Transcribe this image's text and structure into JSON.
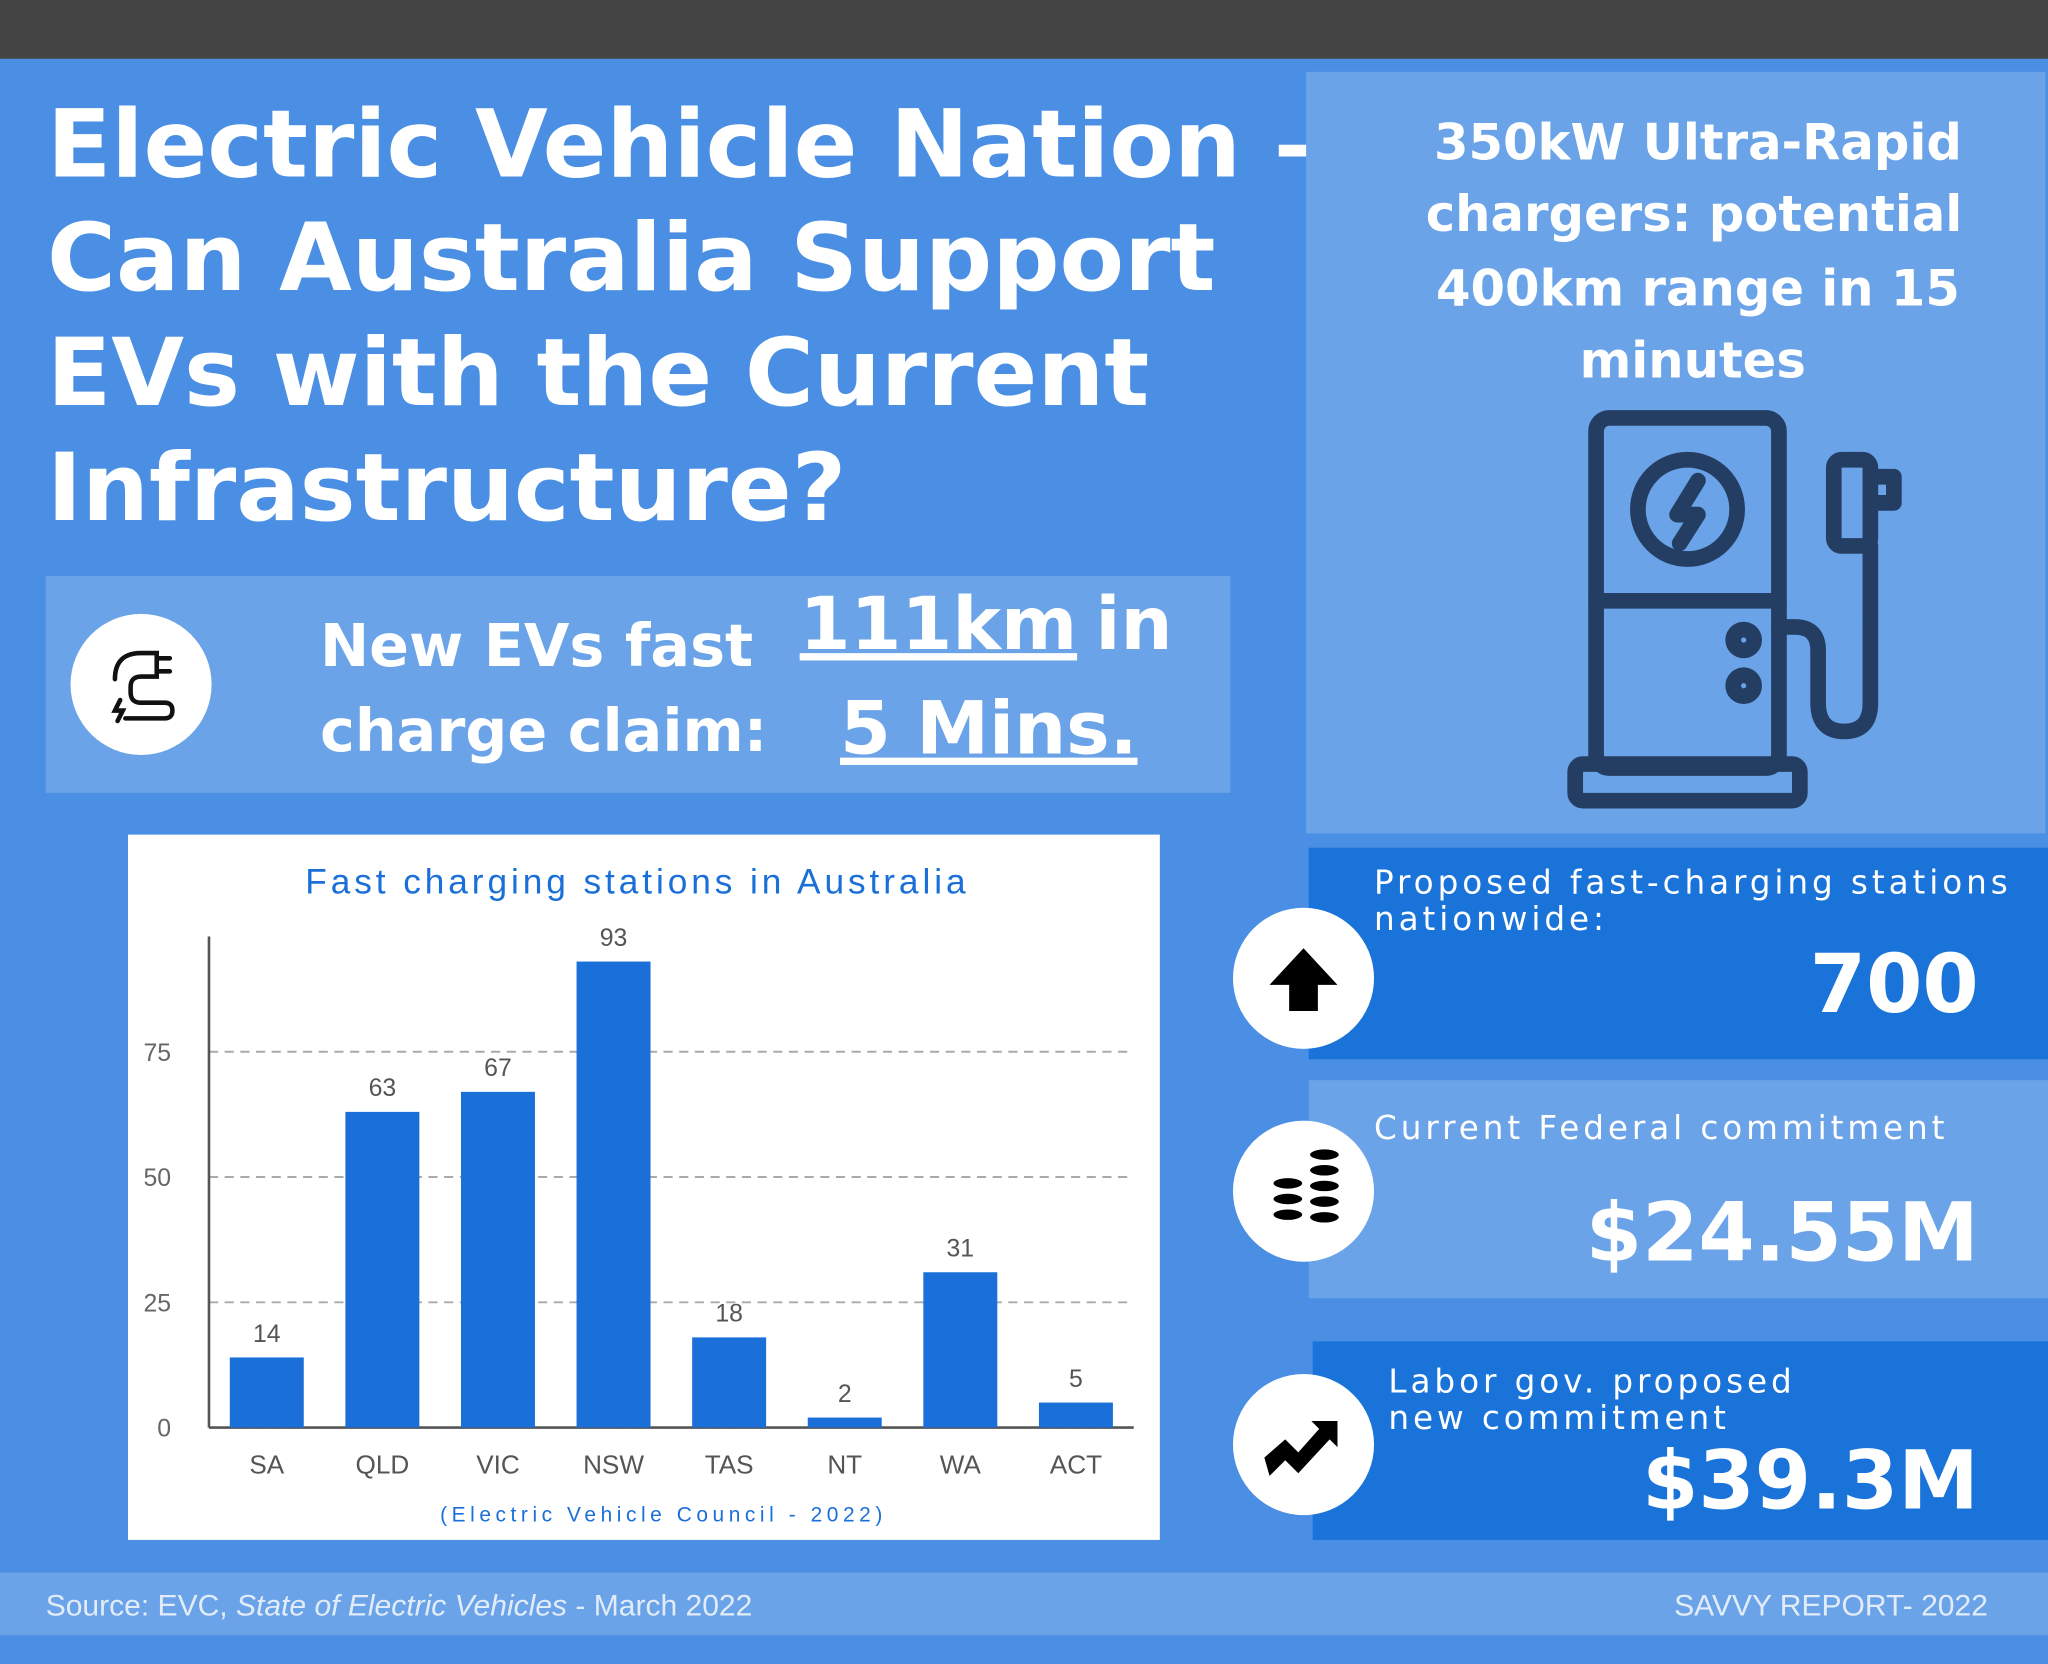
{
  "header": {
    "title_lines": [
      "Electric Vehicle Nation –",
      "Can Australia Support",
      "EVs with the Current",
      "Infrastructure?"
    ]
  },
  "claim": {
    "label_lines": [
      "New EVs fast",
      "charge claim:"
    ],
    "distance": "111km",
    "connector": "in",
    "time": "5 Mins."
  },
  "feature": {
    "lines": [
      "350kW Ultra-Rapid",
      "chargers: potential",
      "400km range in 15",
      "minutes"
    ]
  },
  "stats": [
    {
      "label_lines": [
        "Proposed fast-charging stations",
        "nationwide:"
      ],
      "value": "700"
    },
    {
      "label_lines": [
        "Current Federal commitment"
      ],
      "value": "$24.55M"
    },
    {
      "label_lines": [
        "Labor gov. proposed",
        "new commitment"
      ],
      "value": "$39.3M"
    }
  ],
  "chart_data": {
    "type": "bar",
    "title": "Fast charging stations in Australia",
    "source": "(Electric Vehicle Council - 2022)",
    "categories": [
      "SA",
      "QLD",
      "VIC",
      "NSW",
      "TAS",
      "NT",
      "WA",
      "ACT"
    ],
    "values": [
      14,
      63,
      67,
      93,
      18,
      2,
      31,
      5
    ],
    "color": "#1a6fd8",
    "ylim": [
      0,
      98
    ],
    "yticks": [
      0,
      25,
      50,
      75
    ],
    "grid": true
  },
  "footer": {
    "source_prefix": "Source: EVC,",
    "source_title": "State of Electric Vehicles",
    "source_suffix": "- March 2022",
    "brand": "SAVVY REPORT- 2022"
  }
}
